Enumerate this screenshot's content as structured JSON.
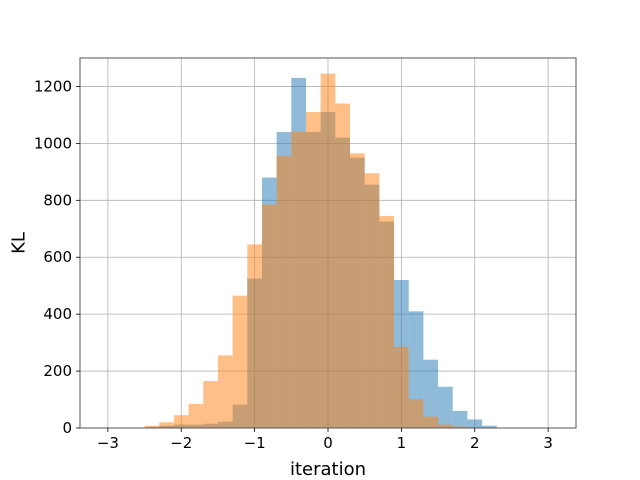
{
  "chart_data": {
    "type": "bar",
    "title": "",
    "xlabel": "iteration",
    "ylabel": "KL",
    "xlim": [
      -3.38,
      3.38
    ],
    "ylim": [
      0,
      1300
    ],
    "xticks": [
      -3,
      -2,
      -1,
      0,
      1,
      2,
      3
    ],
    "xtick_labels": [
      "−3",
      "−2",
      "−1",
      "0",
      "1",
      "2",
      "3"
    ],
    "yticks": [
      0,
      200,
      400,
      600,
      800,
      1000,
      1200
    ],
    "ytick_labels": [
      "0",
      "200",
      "400",
      "600",
      "800",
      "1000",
      "1200"
    ],
    "grid": true,
    "legend": "none",
    "series": [
      {
        "color": "#1f77b4",
        "opacity": 0.5,
        "bins": [
          [
            -2.5,
            -2.3,
            3
          ],
          [
            -2.3,
            -2.1,
            8
          ],
          [
            -2.1,
            -1.9,
            12
          ],
          [
            -1.9,
            -1.7,
            12
          ],
          [
            -1.7,
            -1.5,
            15
          ],
          [
            -1.5,
            -1.3,
            22
          ],
          [
            -1.3,
            -1.1,
            82
          ],
          [
            -1.1,
            -0.9,
            525
          ],
          [
            -0.9,
            -0.7,
            880
          ],
          [
            -0.7,
            -0.5,
            1040
          ],
          [
            -0.5,
            -0.3,
            1230
          ],
          [
            -0.3,
            -0.1,
            1040
          ],
          [
            -0.1,
            0.1,
            1110
          ],
          [
            0.1,
            0.3,
            1020
          ],
          [
            0.3,
            0.5,
            950
          ],
          [
            0.5,
            0.7,
            855
          ],
          [
            0.7,
            0.9,
            725
          ],
          [
            0.9,
            1.1,
            520
          ],
          [
            1.1,
            1.3,
            410
          ],
          [
            1.3,
            1.5,
            240
          ],
          [
            1.5,
            1.7,
            145
          ],
          [
            1.7,
            1.9,
            60
          ],
          [
            1.9,
            2.1,
            30
          ],
          [
            2.1,
            2.3,
            8
          ]
        ]
      },
      {
        "color": "#ff7f0e",
        "opacity": 0.5,
        "bins": [
          [
            -2.5,
            -2.3,
            8
          ],
          [
            -2.3,
            -2.1,
            20
          ],
          [
            -2.1,
            -1.9,
            45
          ],
          [
            -1.9,
            -1.7,
            85
          ],
          [
            -1.7,
            -1.5,
            165
          ],
          [
            -1.5,
            -1.3,
            255
          ],
          [
            -1.3,
            -1.1,
            465
          ],
          [
            -1.1,
            -0.9,
            645
          ],
          [
            -0.9,
            -0.7,
            785
          ],
          [
            -0.7,
            -0.5,
            955
          ],
          [
            -0.5,
            -0.3,
            1040
          ],
          [
            -0.3,
            -0.1,
            1110
          ],
          [
            -0.1,
            0.1,
            1245
          ],
          [
            0.1,
            0.3,
            1140
          ],
          [
            0.3,
            0.5,
            965
          ],
          [
            0.5,
            0.7,
            895
          ],
          [
            0.7,
            0.9,
            745
          ],
          [
            0.9,
            1.1,
            285
          ],
          [
            1.1,
            1.3,
            100
          ],
          [
            1.3,
            1.5,
            40
          ],
          [
            1.5,
            1.7,
            12
          ],
          [
            1.7,
            1.9,
            5
          ],
          [
            1.9,
            2.1,
            2
          ]
        ]
      }
    ]
  }
}
